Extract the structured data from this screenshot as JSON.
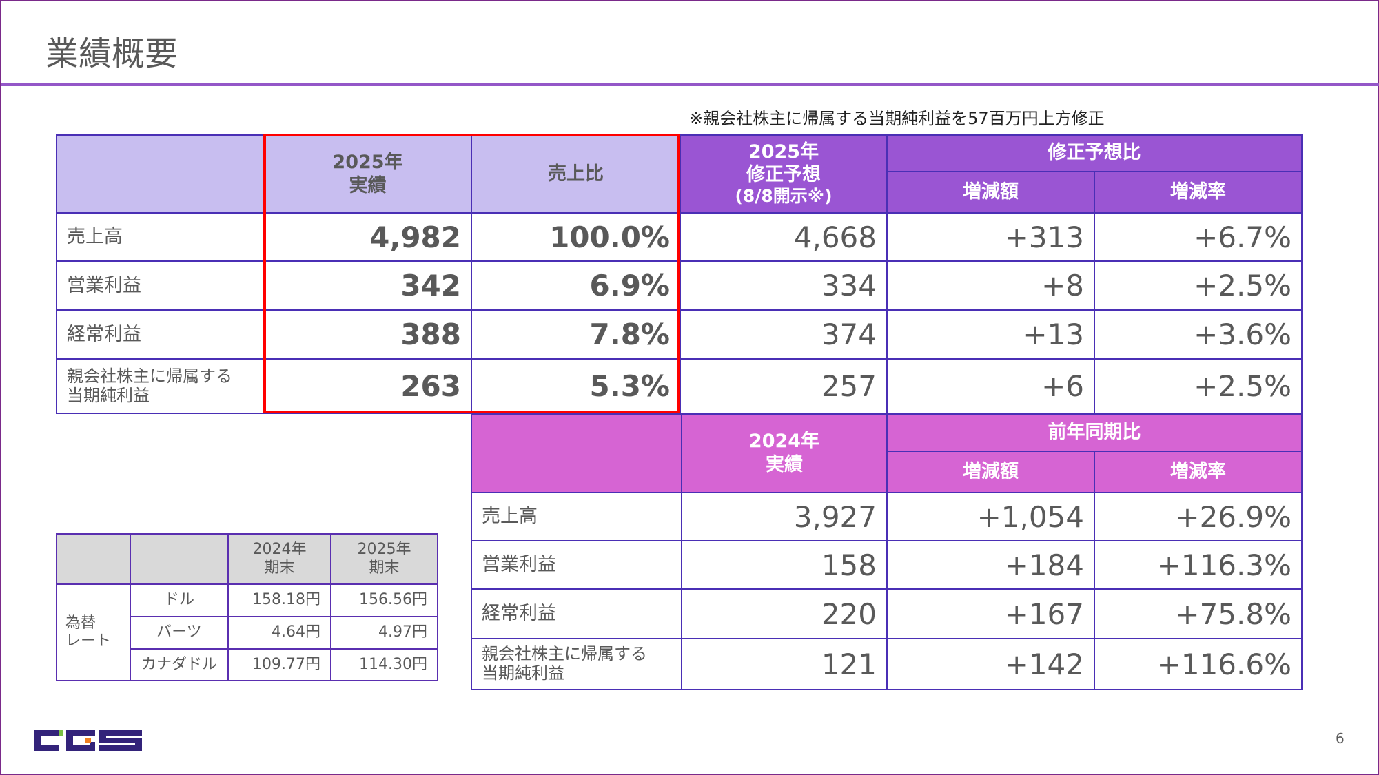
{
  "header": {
    "title": "業績概要"
  },
  "note": "※親会社株主に帰属する当期純利益を57百万円上方修正",
  "main_table": {
    "headers": {
      "actual_2025": [
        "2025年",
        "実績"
      ],
      "sales_ratio": "売上比",
      "forecast_2025": [
        "2025年",
        "修正予想",
        "(8/8開示※)"
      ],
      "forecast_compare": "修正予想比",
      "change_amount": "増減額",
      "change_rate": "増減率"
    },
    "rows": [
      {
        "label": "売上高",
        "actual": "4,982",
        "ratio": "100.0%",
        "forecast": "4,668",
        "diff": "+313",
        "rate": "+6.7%"
      },
      {
        "label": "営業利益",
        "actual": "342",
        "ratio": "6.9%",
        "forecast": "334",
        "diff": "+8",
        "rate": "+2.5%"
      },
      {
        "label": "経常利益",
        "actual": "388",
        "ratio": "7.8%",
        "forecast": "374",
        "diff": "+13",
        "rate": "+3.6%"
      },
      {
        "label": [
          "親会社株主に帰属する",
          "当期純利益"
        ],
        "actual": "263",
        "ratio": "5.3%",
        "forecast": "257",
        "diff": "+6",
        "rate": "+2.5%"
      }
    ]
  },
  "prev_table": {
    "headers": {
      "actual_2024": [
        "2024年",
        "実績"
      ],
      "yoy_compare": "前年同期比",
      "change_amount": "増減額",
      "change_rate": "増減率"
    },
    "rows": [
      {
        "label": "売上高",
        "actual": "3,927",
        "diff": "+1,054",
        "rate": "+26.9%"
      },
      {
        "label": "営業利益",
        "actual": "158",
        "diff": "+184",
        "rate": "+116.3%"
      },
      {
        "label": "経常利益",
        "actual": "220",
        "diff": "+167",
        "rate": "+75.8%"
      },
      {
        "label": [
          "親会社株主に帰属する",
          "当期純利益"
        ],
        "actual": "121",
        "diff": "+142",
        "rate": "+116.6%"
      }
    ]
  },
  "fx_table": {
    "headers": {
      "y2024": [
        "2024年",
        "期末"
      ],
      "y2025": [
        "2025年",
        "期末"
      ]
    },
    "group_label": [
      "為替",
      "レート"
    ],
    "rows": [
      {
        "currency": "ドル",
        "y2024": "158.18円",
        "y2025": "156.56円"
      },
      {
        "currency": "バーツ",
        "y2024": "4.64円",
        "y2025": "4.97円"
      },
      {
        "currency": "カナダドル",
        "y2024": "109.77円",
        "y2025": "114.30円"
      }
    ]
  },
  "logo": {
    "text": "CGS",
    "colors": {
      "navy": "#33237a",
      "green": "#7ac143",
      "orange": "#f07f22"
    }
  },
  "page_number": "6"
}
